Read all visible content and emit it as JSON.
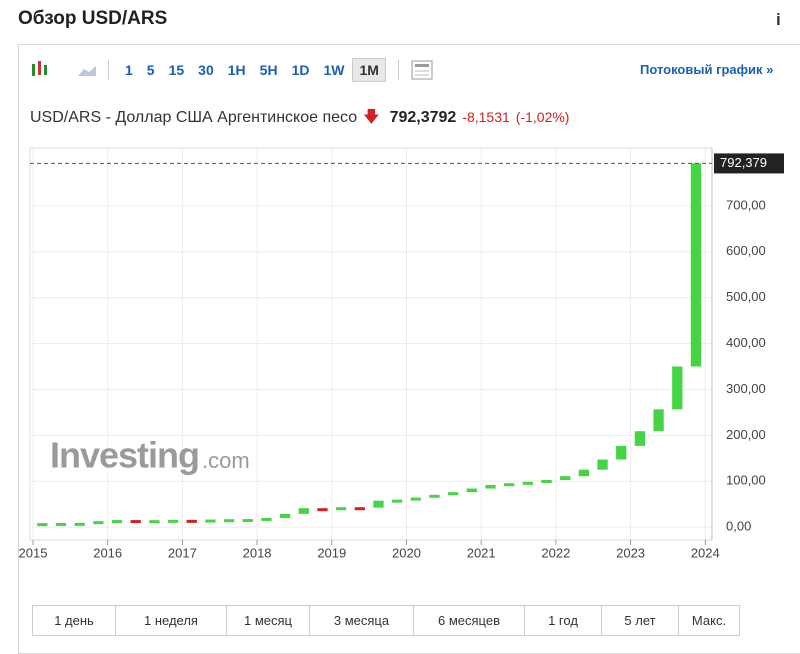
{
  "header": {
    "title": "Обзор USD/ARS",
    "info": "i"
  },
  "toolbar": {
    "intervals": [
      "1",
      "5",
      "15",
      "30",
      "1H",
      "5H",
      "1D",
      "1W",
      "1M"
    ],
    "active_interval": 8,
    "streaming_link": "Потоковый график »"
  },
  "quote": {
    "name": "USD/ARS - Доллар США Аргентинское песо",
    "price": "792,3792",
    "change": "-8,1531",
    "change_pct": "(-1,02%)"
  },
  "watermark": {
    "brand": "Investing",
    "suffix": ".com"
  },
  "chart_data": {
    "type": "candlestick",
    "x": [
      2015.125,
      2015.375,
      2015.625,
      2015.875,
      2016.125,
      2016.375,
      2016.625,
      2016.875,
      2017.125,
      2017.375,
      2017.625,
      2017.875,
      2018.125,
      2018.375,
      2018.625,
      2018.875,
      2019.125,
      2019.375,
      2019.625,
      2019.875,
      2020.125,
      2020.375,
      2020.625,
      2020.875,
      2021.125,
      2021.375,
      2021.625,
      2021.875,
      2022.125,
      2022.375,
      2022.625,
      2022.875,
      2023.125,
      2023.375,
      2023.625,
      2023.875
    ],
    "open": [
      8.55,
      8.8,
      9.1,
      9.4,
      13.0,
      15.4,
      15.0,
      15.2,
      15.9,
      15.4,
      16.6,
      17.3,
      17.6,
      20.1,
      28.9,
      41.3,
      37.7,
      43.4,
      42.5,
      57.6,
      59.9,
      64.4,
      70.5,
      76.2,
      84.1,
      92.0,
      95.7,
      98.7,
      102.7,
      111.0,
      125.2,
      147.3,
      177.1,
      209.0,
      256.7,
      350.0
    ],
    "close": [
      8.8,
      9.1,
      9.4,
      13.0,
      15.4,
      15.0,
      15.2,
      15.9,
      15.4,
      16.6,
      17.3,
      17.6,
      20.1,
      28.9,
      41.3,
      37.7,
      43.4,
      42.5,
      57.6,
      59.9,
      64.4,
      70.5,
      76.2,
      84.1,
      92.0,
      95.7,
      98.7,
      102.7,
      111.0,
      125.2,
      147.3,
      177.1,
      209.0,
      256.7,
      350.0,
      792.3792
    ],
    "up_color": "#44d444",
    "down_color": "#d42020",
    "xlim": [
      2014.96,
      2024.09
    ],
    "xticks": [
      2015,
      2016,
      2017,
      2018,
      2019,
      2020,
      2021,
      2022,
      2023,
      2024
    ],
    "ylim": [
      -28,
      826
    ],
    "yticks": [
      {
        "value": 0,
        "label": "0,00"
      },
      {
        "value": 100,
        "label": "100,00"
      },
      {
        "value": 200,
        "label": "200,00"
      },
      {
        "value": 300,
        "label": "300,00"
      },
      {
        "value": 400,
        "label": "400,00"
      },
      {
        "value": 500,
        "label": "500,00"
      },
      {
        "value": 600,
        "label": "600,00"
      },
      {
        "value": 700,
        "label": "700,00"
      }
    ],
    "grid": true,
    "last_label": "792,379"
  },
  "ranges": [
    "1 день",
    "1 неделя",
    "1 месяц",
    "3 месяца",
    "6 месяцев",
    "1 год",
    "5 лет",
    "Макс."
  ]
}
